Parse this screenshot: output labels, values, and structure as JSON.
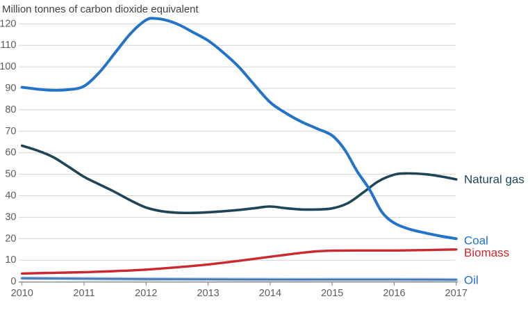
{
  "chart_data": {
    "type": "line",
    "title": "Million tonnes of carbon dioxide equivalent",
    "xlabel": "",
    "ylabel": "Million tonnes of carbon dioxide equivalent",
    "xlim": [
      2010,
      2017
    ],
    "ylim": [
      0,
      120
    ],
    "x_ticks": [
      2010,
      2011,
      2012,
      2013,
      2014,
      2015,
      2016,
      2017
    ],
    "y_ticks": [
      0,
      10,
      20,
      30,
      40,
      50,
      60,
      70,
      80,
      90,
      100,
      110,
      120
    ],
    "grid": "horizontal-only",
    "legend_position": "right-end-of-line-labels",
    "colors": {
      "coal": "#2373c8",
      "natural_gas": "#1f4557",
      "biomass": "#c9292f",
      "oil": "#4679b2",
      "oil_halo": "#b3cbe4",
      "gridline": "#d2d2d2",
      "axis": "#7e7e7e",
      "tick_text": "#5c5c5c",
      "title_text": "#3f3f3f"
    },
    "series": [
      {
        "name": "Natural gas",
        "label": "Natural gas",
        "color": "#1f4557",
        "label_color": "#1f4557",
        "width": 3.6,
        "label_dy": 0,
        "points": [
          [
            2010,
            63.3
          ],
          [
            2010.25,
            61
          ],
          [
            2010.5,
            58
          ],
          [
            2010.75,
            53.5
          ],
          [
            2011,
            48.8
          ],
          [
            2011.25,
            45.2
          ],
          [
            2011.5,
            41.7
          ],
          [
            2011.75,
            37.8
          ],
          [
            2012,
            34.5
          ],
          [
            2012.25,
            32.8
          ],
          [
            2012.5,
            32.1
          ],
          [
            2012.75,
            32
          ],
          [
            2013,
            32.3
          ],
          [
            2013.25,
            32.8
          ],
          [
            2013.5,
            33.4
          ],
          [
            2013.75,
            34.2
          ],
          [
            2014,
            35
          ],
          [
            2014.25,
            34.2
          ],
          [
            2014.5,
            33.6
          ],
          [
            2014.75,
            33.6
          ],
          [
            2015,
            34.1
          ],
          [
            2015.25,
            36.5
          ],
          [
            2015.5,
            41.5
          ],
          [
            2015.75,
            46.8
          ],
          [
            2016,
            49.8
          ],
          [
            2016.2,
            50.4
          ],
          [
            2016.5,
            50
          ],
          [
            2016.75,
            49
          ],
          [
            2017,
            47.6
          ]
        ]
      },
      {
        "name": "Oil",
        "label": "Oil",
        "color": "#4679b2",
        "label_color": "#2171c7",
        "width": 2.6,
        "halo_color": "#b3cbe4",
        "halo_width": 5.2,
        "label_dy": 0.5,
        "points": [
          [
            2010,
            1.6
          ],
          [
            2011,
            1.4
          ],
          [
            2012,
            1.2
          ],
          [
            2013,
            1.1
          ],
          [
            2014,
            1
          ],
          [
            2015,
            1
          ],
          [
            2016,
            1
          ],
          [
            2017,
            0.9
          ]
        ]
      },
      {
        "name": "Biomass",
        "label": "Biomass",
        "color": "#c9292f",
        "label_color": "#c9292f",
        "width": 3.4,
        "label_dy": 4.5,
        "points": [
          [
            2010,
            3.8
          ],
          [
            2010.5,
            4.1
          ],
          [
            2011,
            4.4
          ],
          [
            2011.5,
            4.9
          ],
          [
            2012,
            5.6
          ],
          [
            2012.5,
            6.7
          ],
          [
            2013,
            8
          ],
          [
            2013.5,
            9.7
          ],
          [
            2014,
            11.6
          ],
          [
            2014.25,
            12.5
          ],
          [
            2014.5,
            13.4
          ],
          [
            2014.75,
            14.1
          ],
          [
            2015,
            14.4
          ],
          [
            2015.5,
            14.5
          ],
          [
            2016,
            14.5
          ],
          [
            2016.5,
            14.7
          ],
          [
            2017,
            15
          ]
        ]
      },
      {
        "name": "Coal",
        "label": "Coal",
        "color": "#2373c8",
        "label_color": "#2171c7",
        "width": 4,
        "label_dy": 2.5,
        "points": [
          [
            2010,
            90.5
          ],
          [
            2010.25,
            89.6
          ],
          [
            2010.5,
            89.1
          ],
          [
            2010.75,
            89.4
          ],
          [
            2011,
            91
          ],
          [
            2011.25,
            97.5
          ],
          [
            2011.5,
            106.5
          ],
          [
            2011.75,
            115.5
          ],
          [
            2012,
            121.8
          ],
          [
            2012.15,
            122.5
          ],
          [
            2012.35,
            121.5
          ],
          [
            2012.55,
            119.3
          ],
          [
            2012.75,
            116.2
          ],
          [
            2013,
            112.2
          ],
          [
            2013.25,
            106.5
          ],
          [
            2013.5,
            99.8
          ],
          [
            2013.75,
            91.5
          ],
          [
            2014,
            83.5
          ],
          [
            2014.25,
            78.5
          ],
          [
            2014.5,
            74.5
          ],
          [
            2014.75,
            71.3
          ],
          [
            2015,
            68
          ],
          [
            2015.2,
            61.5
          ],
          [
            2015.4,
            51.5
          ],
          [
            2015.6,
            43
          ],
          [
            2015.8,
            32.5
          ],
          [
            2016,
            27.3
          ],
          [
            2016.25,
            24.4
          ],
          [
            2016.5,
            22.7
          ],
          [
            2016.75,
            21.2
          ],
          [
            2017,
            20
          ]
        ]
      }
    ]
  }
}
